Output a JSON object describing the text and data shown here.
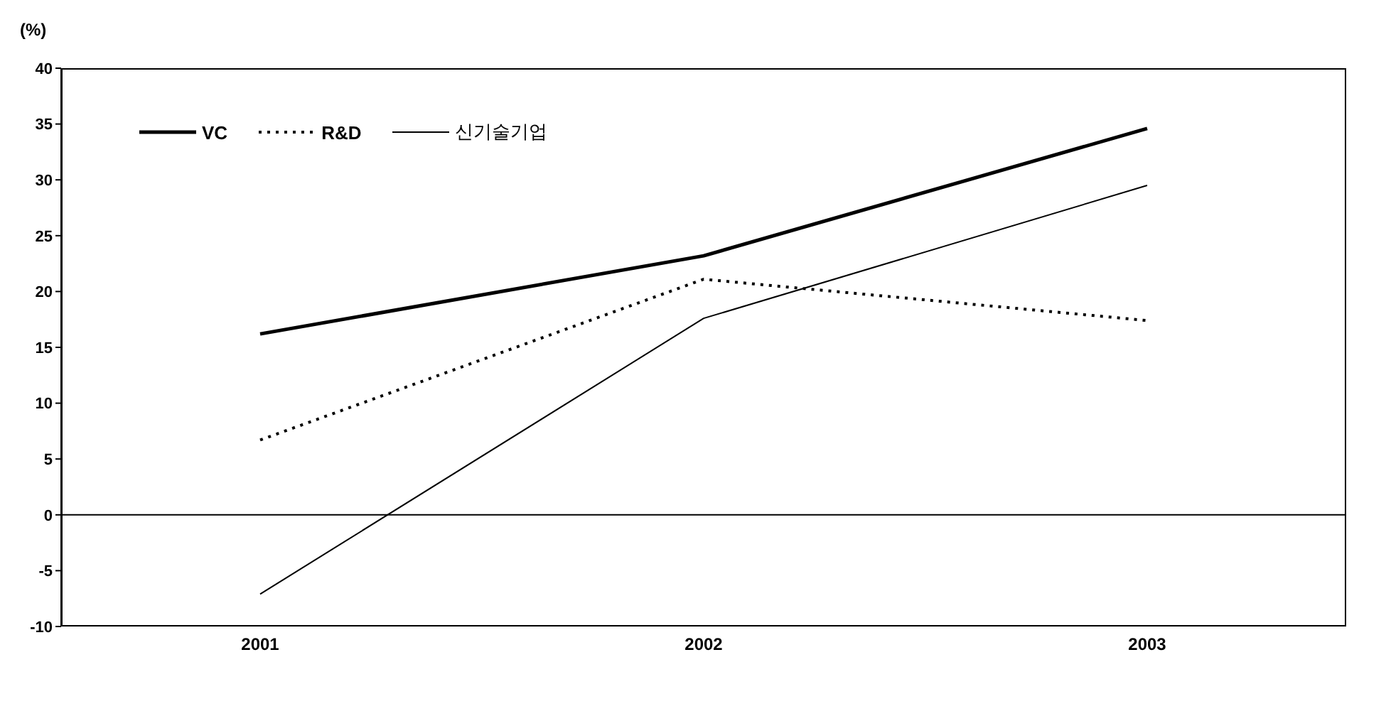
{
  "chart_data": {
    "type": "line",
    "ylabel": "(%)",
    "categories": [
      "2001",
      "2002",
      "2003"
    ],
    "series": [
      {
        "name": "VC",
        "color": "#000000",
        "values": [
          16.2,
          23.2,
          34.6
        ],
        "line_style": "solid"
      },
      {
        "name": "R&D",
        "color": "#000000",
        "values": [
          6.7,
          21.1,
          17.4
        ],
        "line_style": "dotted"
      },
      {
        "name": "신기술기업",
        "color": "#000000",
        "values": [
          -7.1,
          17.6,
          29.5
        ],
        "line_style": "solid"
      }
    ],
    "ylim": [
      -10,
      40
    ],
    "yticks": [
      -10,
      -5,
      0,
      5,
      10,
      15,
      20,
      25,
      30,
      35,
      40
    ],
    "grid": false,
    "legend": "top left",
    "marker": "none",
    "ref_lines": [
      {
        "axis": "y",
        "value": 0,
        "color": "#000000"
      }
    ]
  }
}
